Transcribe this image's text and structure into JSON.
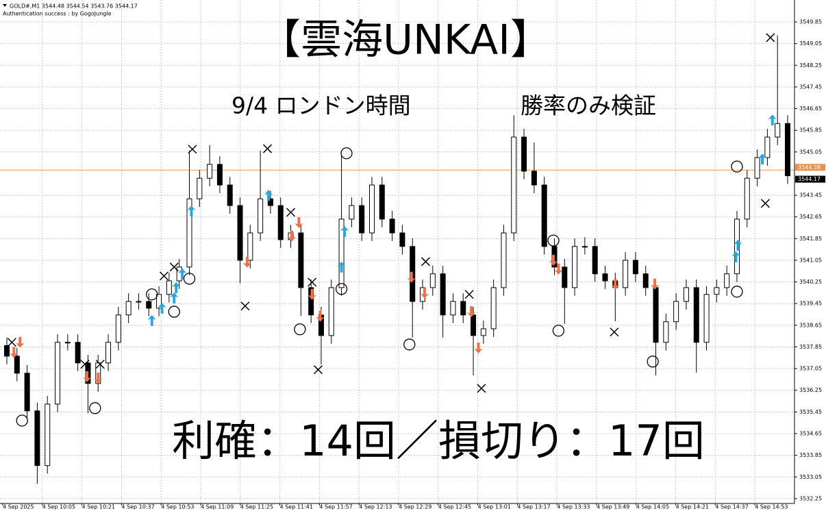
{
  "chart_data": {
    "type": "candlestick",
    "header": [
      "GOLD#,M1  3544.48 3544.54 3543.76 3544.17",
      "Authentication success : by GogoJungle"
    ],
    "title": "【雲海UNKAI】",
    "subtitle_left": "9/4  ロンドン時間",
    "subtitle_right": "勝率のみ検証",
    "result": "利確：14回／損切り：17回",
    "open": [
      3537.9,
      3537.51,
      3536.88,
      3535.49,
      3533.47,
      3535.74,
      3538.02,
      3538.02,
      3537.26,
      3536.5,
      3537.26,
      3538.02,
      3539.03,
      3539.53,
      3539.53,
      3539.28,
      3539.79,
      3540.29,
      3540.8,
      3543.32,
      3544.08,
      3544.59,
      3543.83,
      3543.07,
      3541.05,
      3542.06,
      3543.32,
      3543.07,
      3541.81,
      3542.06,
      3540.04,
      3539.03,
      3538.27,
      3540.04,
      3542.57,
      3543.07,
      3542.06,
      3543.83,
      3542.57,
      3542.06,
      3541.56,
      3539.53,
      3540.04,
      3540.55,
      3539.03,
      3539.53,
      3539.03,
      3538.27,
      3538.52,
      3540.04,
      3542.06,
      3545.6,
      3544.34,
      3543.83,
      3541.56,
      3540.8,
      3540.04,
      3541.56,
      3541.56,
      3540.55,
      3540.29,
      3540.04,
      3541.05,
      3540.55,
      3540.04,
      3538.02,
      3538.78,
      3539.53,
      3540.04,
      3538.02,
      3539.79,
      3540.04,
      3540.55,
      3542.57,
      3544.08,
      3544.84,
      3545.6,
      3546.1
    ],
    "high": [
      3538.2,
      3537.81,
      3537.18,
      3535.79,
      3536.04,
      3538.32,
      3538.32,
      3538.32,
      3537.56,
      3537.56,
      3538.32,
      3539.33,
      3539.83,
      3539.83,
      3539.83,
      3540.09,
      3540.59,
      3541.1,
      3545.1,
      3544.38,
      3545.3,
      3544.89,
      3544.13,
      3543.37,
      3542.36,
      3545.1,
      3543.62,
      3543.37,
      3542.36,
      3542.36,
      3540.34,
      3539.33,
      3540.34,
      3544.9,
      3543.37,
      3543.37,
      3544.13,
      3544.13,
      3542.87,
      3542.36,
      3541.86,
      3540.34,
      3540.85,
      3540.85,
      3539.83,
      3539.83,
      3539.33,
      3538.82,
      3540.34,
      3542.36,
      3546.4,
      3545.9,
      3545.4,
      3544.13,
      3541.86,
      3541.1,
      3541.86,
      3541.9,
      3541.86,
      3540.85,
      3540.59,
      3541.35,
      3541.35,
      3540.85,
      3540.34,
      3539.08,
      3539.83,
      3540.34,
      3540.34,
      3540.09,
      3540.34,
      3540.85,
      3542.87,
      3544.38,
      3545.14,
      3545.9,
      3549.35,
      3546.4
    ],
    "low": [
      3537.21,
      3536.58,
      3535.19,
      3532.8,
      3533.17,
      3535.44,
      3537.72,
      3536.96,
      3535.4,
      3536.2,
      3536.96,
      3537.72,
      3538.73,
      3539.23,
      3538.98,
      3538.98,
      3539.49,
      3539.99,
      3540.5,
      3543.02,
      3543.78,
      3543.53,
      3542.77,
      3540.2,
      3540.75,
      3541.76,
      3542.77,
      3541.51,
      3541.51,
      3539.0,
      3538.73,
      3537.2,
      3537.97,
      3539.74,
      3542.27,
      3541.76,
      3541.76,
      3542.27,
      3541.76,
      3541.26,
      3538.2,
      3539.23,
      3539.74,
      3538.2,
      3538.73,
      3538.73,
      3536.8,
      3537.97,
      3538.22,
      3539.74,
      3541.76,
      3544.04,
      3543.53,
      3541.26,
      3540.5,
      3538.7,
      3539.74,
      3541.26,
      3540.25,
      3539.99,
      3538.8,
      3539.74,
      3540.25,
      3539.74,
      3536.8,
      3537.72,
      3538.48,
      3539.23,
      3536.9,
      3537.72,
      3539.49,
      3539.74,
      3540.25,
      3542.27,
      3543.78,
      3544.54,
      3545.3,
      3543.87
    ],
    "close": [
      3537.51,
      3536.88,
      3535.49,
      3533.47,
      3535.74,
      3538.02,
      3538.02,
      3537.26,
      3536.5,
      3537.26,
      3538.02,
      3539.03,
      3539.53,
      3539.53,
      3539.28,
      3539.79,
      3540.29,
      3540.8,
      3543.32,
      3544.08,
      3544.59,
      3543.83,
      3543.07,
      3541.05,
      3542.06,
      3543.32,
      3543.07,
      3541.81,
      3542.06,
      3540.04,
      3539.03,
      3538.27,
      3540.04,
      3542.57,
      3543.07,
      3542.06,
      3543.83,
      3542.57,
      3542.06,
      3541.56,
      3539.53,
      3540.04,
      3540.55,
      3539.03,
      3539.53,
      3539.03,
      3538.27,
      3538.52,
      3540.04,
      3542.06,
      3545.6,
      3544.34,
      3543.83,
      3541.56,
      3540.8,
      3540.04,
      3541.56,
      3541.56,
      3540.55,
      3540.29,
      3540.04,
      3541.05,
      3540.55,
      3540.04,
      3538.02,
      3538.78,
      3539.53,
      3540.04,
      3538.02,
      3539.79,
      3540.04,
      3540.55,
      3542.57,
      3544.08,
      3544.84,
      3545.6,
      3546.1,
      3544.17
    ],
    "up_color": "#ffffff",
    "down_color": "#000000",
    "ylim": [
      3532.07,
      3550.66
    ],
    "yticks": [
      3532.25,
      3533.05,
      3533.85,
      3534.65,
      3535.45,
      3536.25,
      3537.05,
      3537.85,
      3538.65,
      3539.45,
      3540.25,
      3541.05,
      3541.85,
      3542.65,
      3543.45,
      3545.05,
      3545.85,
      3546.65,
      3547.45,
      3548.25,
      3549.05,
      3549.85
    ],
    "xticks": [
      "4 Sep 2025",
      "4 Sep 10:05",
      "4 Sep 10:21",
      "4 Sep 10:37",
      "4 Sep 10:53",
      "4 Sep 11:09",
      "4 Sep 11:25",
      "4 Sep 11:41",
      "4 Sep 11:57",
      "4 Sep 12:13",
      "4 Sep 12:29",
      "4 Sep 12:45",
      "4 Sep 13:01",
      "4 Sep 13:17",
      "4 Sep 13:33",
      "4 Sep 13:49",
      "4 Sep 14:05",
      "4 Sep 14:21",
      "4 Sep 14:37",
      "4 Sep 14:53"
    ],
    "grid": true,
    "price_lines": [
      {
        "value": 3544.38,
        "color": "#e8914f"
      },
      {
        "value": 3544.17,
        "color": "#000000"
      }
    ],
    "markers": {
      "up": {
        "color": "#2aa7e0",
        "x": [
          14.3,
          15.3,
          16.5,
          16.7,
          17.3,
          18.2,
          25.8,
          33.3,
          33.0,
          71.9,
          72.1,
          74.5,
          75.5
        ],
        "y": [
          3538.83,
          3539.28,
          3539.66,
          3540.04,
          3540.55,
          3542.87,
          3543.45,
          3542.11,
          3540.8,
          3541.18,
          3541.61,
          3544.79,
          3546.23
        ]
      },
      "down": {
        "color": "#f0704a",
        "x": [
          0.7,
          1.3,
          7.9,
          9.0,
          23.7,
          28.1,
          28.8,
          30.1,
          30.9,
          39.9,
          41.2,
          45.8,
          46.5,
          53.9,
          54.4,
          60.0,
          63.9
        ],
        "y": [
          3537.64,
          3538.02,
          3536.75,
          3536.7,
          3540.98,
          3541.94,
          3542.44,
          3539.79,
          3538.98,
          3540.42,
          3539.84,
          3539.15,
          3537.81,
          3541.05,
          3540.72,
          3540.17,
          3540.17
        ]
      },
      "circle": {
        "color": "#000000",
        "x": [
          1.5,
          8.7,
          14.3,
          16.5,
          18.0,
          28.9,
          33.0,
          33.5,
          39.7,
          53.9,
          54.4,
          63.7,
          72.0,
          72.0
        ],
        "y": [
          3535.13,
          3535.59,
          3539.79,
          3539.15,
          3540.37,
          3538.5,
          3539.99,
          3545.0,
          3537.94,
          3541.78,
          3538.45,
          3537.31,
          3544.51,
          3539.89
        ]
      },
      "cross": {
        "color": "#000000",
        "x": [
          0.5,
          7.7,
          9.2,
          15.5,
          16.5,
          18.3,
          23.5,
          25.7,
          28.0,
          30.1,
          30.7,
          41.3,
          45.6,
          46.8,
          59.9,
          74.8,
          75.3
        ],
        "y": [
          3538.02,
          3537.21,
          3537.21,
          3540.47,
          3540.8,
          3545.15,
          3539.36,
          3545.17,
          3542.82,
          3540.24,
          3537.01,
          3541.0,
          3539.79,
          3536.32,
          3538.4,
          3543.15,
          3549.27
        ]
      }
    }
  }
}
